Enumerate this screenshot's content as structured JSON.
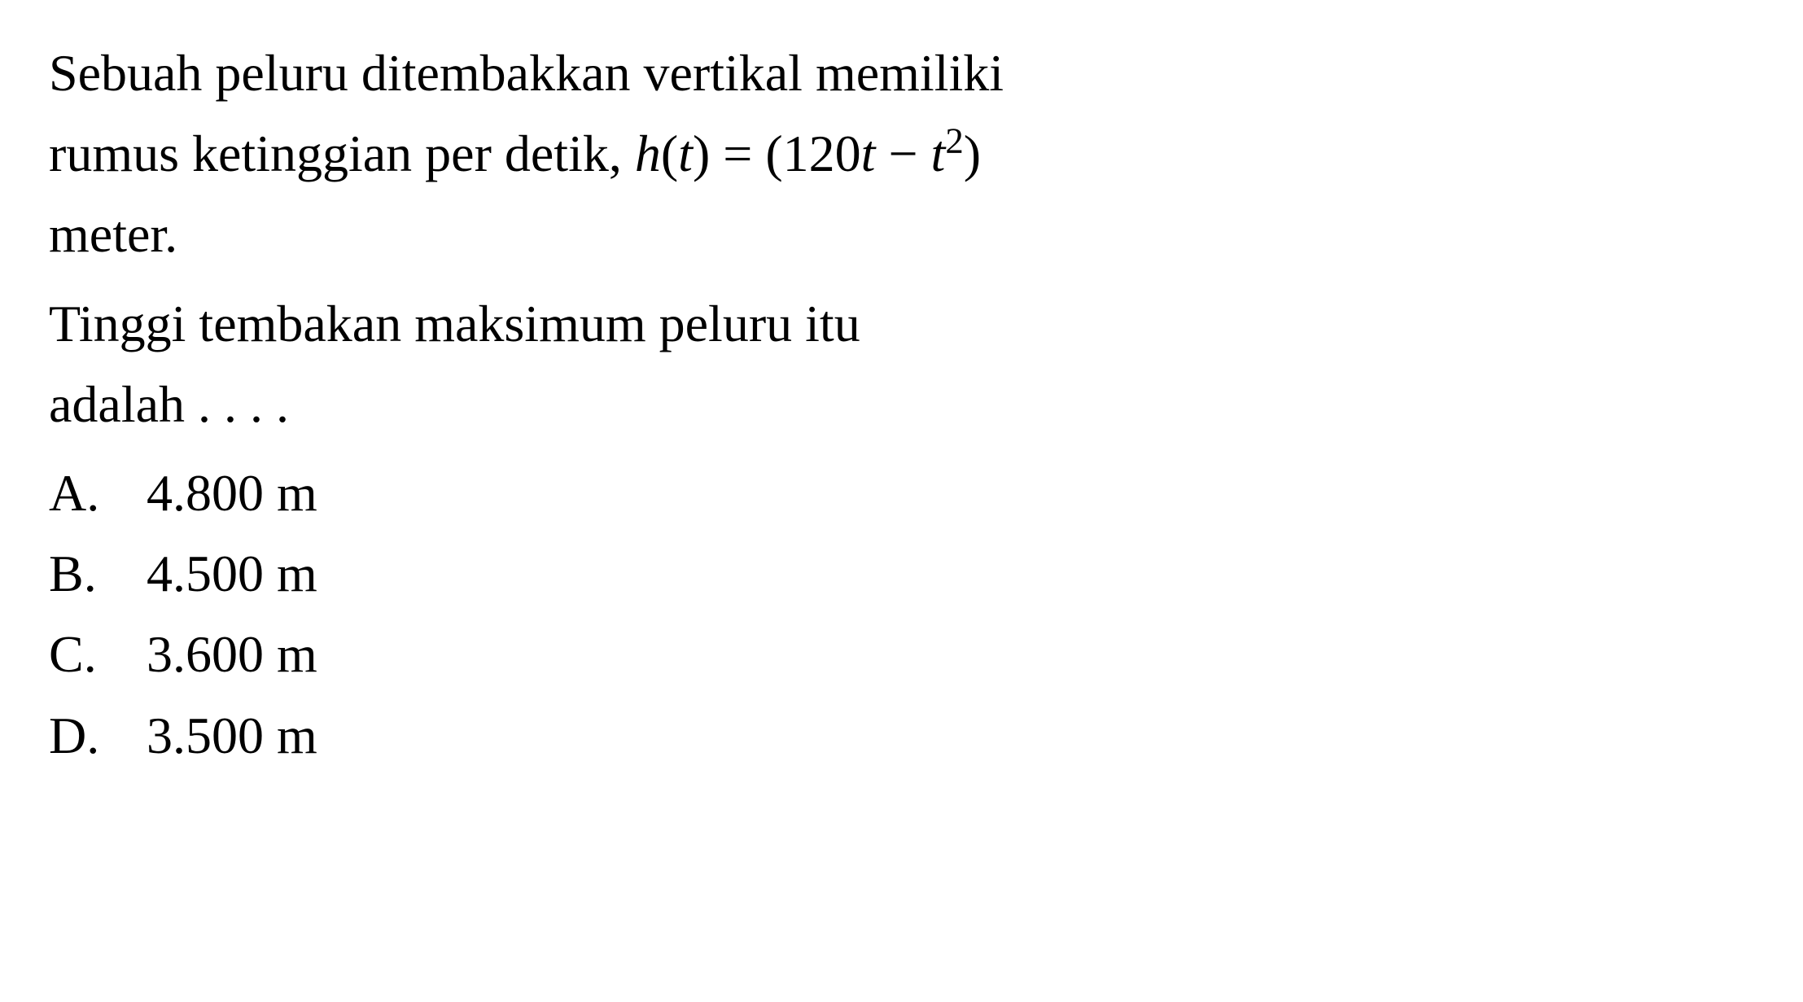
{
  "question": {
    "line1_part1": "Sebuah peluru ditembakkan vertikal memiliki",
    "line2_part1": "rumus ketinggian per detik, ",
    "formula_h": "h",
    "formula_paren_open": "(",
    "formula_t1": "t",
    "formula_paren_close": ")",
    "formula_equals": " = (120",
    "formula_t2": "t",
    "formula_minus": " − ",
    "formula_t3": "t",
    "formula_exp": "2",
    "formula_end": ")",
    "line3": "meter.",
    "prompt_line1": "Tinggi tembakan maksimum peluru itu",
    "prompt_line2": "adalah . . . ."
  },
  "options": {
    "a": {
      "letter": "A.",
      "text": "4.800 m"
    },
    "b": {
      "letter": "B.",
      "text": "4.500 m"
    },
    "c": {
      "letter": "C.",
      "text": "3.600 m"
    },
    "d": {
      "letter": "D.",
      "text": "3.500 m"
    }
  },
  "styles": {
    "background_color": "#ffffff",
    "text_color": "#000000",
    "font_family": "Times New Roman",
    "font_size_pt": 48
  }
}
